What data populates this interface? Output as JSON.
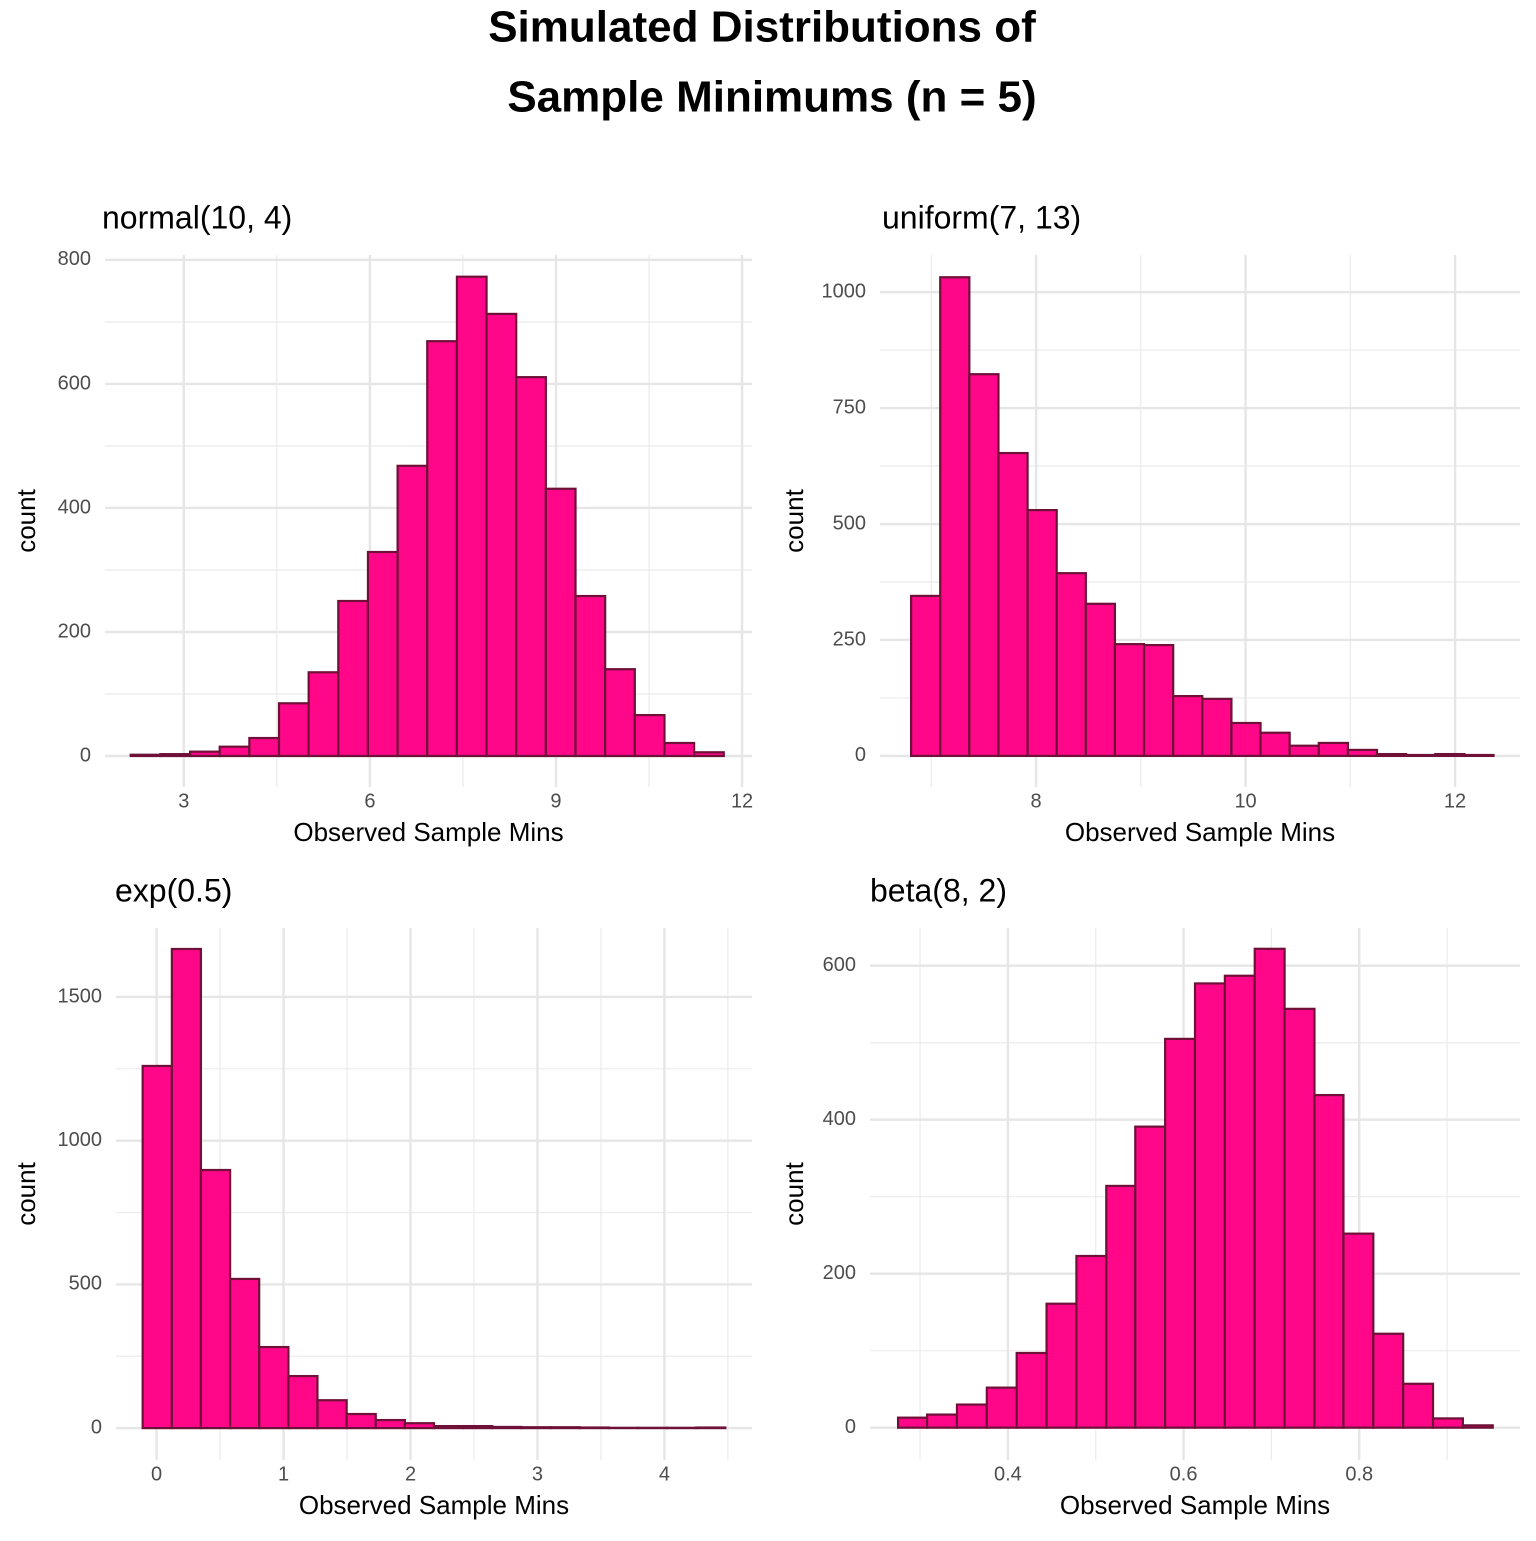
{
  "title_lines": [
    "Simulated Distributions of",
    "Sample Minimums (n = 5)"
  ],
  "chart_data": [
    {
      "type": "histogram",
      "title": "normal(10, 4)",
      "x_label": "Observed Sample Mins",
      "y_label": "count",
      "bins": [
        2.145,
        2.623,
        3.101,
        3.579,
        4.057,
        4.535,
        5.013,
        5.491,
        5.969,
        6.447,
        6.925,
        7.403,
        7.881,
        8.359,
        8.837,
        9.315,
        9.793,
        10.271,
        10.749,
        11.227,
        11.705
      ],
      "values": [
        2,
        3,
        7,
        15,
        29,
        85,
        135,
        250,
        329,
        468,
        669,
        773,
        713,
        611,
        431,
        258,
        140,
        66,
        21,
        6
      ],
      "color": "#ff0788",
      "edgecolor": "#6e1038",
      "xlim": [
        1.73,
        12.16
      ],
      "ylim": [
        -50,
        808
      ],
      "xticks": [
        3,
        6,
        9,
        12
      ],
      "yticks": [
        0,
        200,
        400,
        600,
        800
      ],
      "xminor": [
        4.5,
        7.5,
        10.5
      ],
      "yminor": [
        100,
        300,
        500,
        700
      ],
      "grid": true
    },
    {
      "type": "histogram",
      "title": "uniform(7, 13)",
      "x_label": "Observed Sample Mins",
      "y_label": "count",
      "bins": [
        6.807,
        7.085,
        7.363,
        7.641,
        7.919,
        8.197,
        8.475,
        8.753,
        9.031,
        9.309,
        9.587,
        9.865,
        10.143,
        10.421,
        10.699,
        10.977,
        11.255,
        11.533,
        11.811,
        12.089,
        12.367
      ],
      "values": [
        345,
        1032,
        823,
        653,
        530,
        394,
        328,
        241,
        239,
        129,
        123,
        71,
        50,
        22,
        28,
        13,
        4,
        2,
        4,
        2
      ],
      "color": "#ff0788",
      "edgecolor": "#6e1038",
      "xlim": [
        6.51,
        12.62
      ],
      "ylim": [
        -67,
        1080
      ],
      "xticks": [
        8,
        10,
        12
      ],
      "yticks": [
        0,
        250,
        500,
        750,
        1000
      ],
      "xminor": [
        7,
        9,
        11
      ],
      "yminor": [
        125,
        375,
        625,
        875
      ],
      "grid": true
    },
    {
      "type": "histogram",
      "title": "exp(0.5)",
      "x_label": "Observed Sample Mins",
      "y_label": "count",
      "bins": [
        -0.11,
        0.12,
        0.349,
        0.579,
        0.808,
        1.038,
        1.267,
        1.497,
        1.726,
        1.956,
        2.185,
        2.415,
        2.644,
        2.874,
        3.103,
        3.333,
        3.562,
        3.792,
        4.021,
        4.251,
        4.48
      ],
      "values": [
        1260,
        1667,
        898,
        519,
        282,
        181,
        97,
        49,
        28,
        17,
        7,
        7,
        4,
        3,
        3,
        2,
        1,
        1,
        1,
        2
      ],
      "color": "#ff0788",
      "edgecolor": "#6e1038",
      "xlim": [
        -0.32,
        4.69
      ],
      "ylim": [
        -111,
        1740
      ],
      "xticks": [
        0,
        1,
        2,
        3,
        4
      ],
      "yticks": [
        0,
        500,
        1000,
        1500
      ],
      "xminor": [
        0.5,
        1.5,
        2.5,
        3.5,
        4.5
      ],
      "yminor": [
        250,
        750,
        1250
      ],
      "grid": true
    },
    {
      "type": "histogram",
      "title": "beta(8, 2)",
      "x_label": "Observed Sample Mins",
      "y_label": "count",
      "bins": [
        0.275,
        0.308,
        0.342,
        0.376,
        0.41,
        0.444,
        0.478,
        0.512,
        0.545,
        0.579,
        0.613,
        0.647,
        0.681,
        0.715,
        0.749,
        0.782,
        0.816,
        0.85,
        0.884,
        0.918,
        0.952
      ],
      "values": [
        13,
        17,
        30,
        52,
        97,
        161,
        223,
        314,
        391,
        505,
        577,
        587,
        622,
        544,
        432,
        252,
        122,
        57,
        12,
        3
      ],
      "color": "#ff0788",
      "edgecolor": "#6e1038",
      "xlim": [
        0.243,
        0.983
      ],
      "ylim": [
        -42,
        649
      ],
      "xticks": [
        0.4,
        0.6,
        0.8
      ],
      "yticks": [
        0,
        200,
        400,
        600
      ],
      "xminor": [
        0.3,
        0.5,
        0.7,
        0.9
      ],
      "yminor": [
        100,
        300,
        500
      ],
      "grid": true
    }
  ]
}
